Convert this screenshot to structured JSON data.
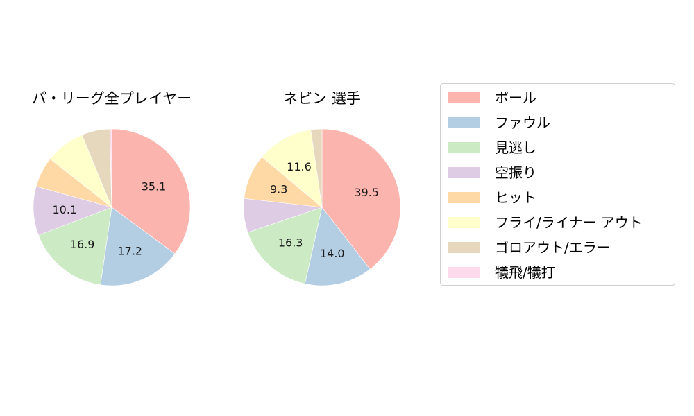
{
  "legend": {
    "items": [
      {
        "label": "ボール",
        "color": "#fbb4ae"
      },
      {
        "label": "ファウル",
        "color": "#b3cde3"
      },
      {
        "label": "見逃し",
        "color": "#ccebc5"
      },
      {
        "label": "空振り",
        "color": "#decbe4"
      },
      {
        "label": "ヒット",
        "color": "#fed9a6"
      },
      {
        "label": "フライ/ライナー アウト",
        "color": "#ffffcc"
      },
      {
        "label": "ゴロアウト/エラー",
        "color": "#e5d8bd"
      },
      {
        "label": "犠飛/犠打",
        "color": "#fddaec"
      }
    ]
  },
  "chart_data": [
    {
      "type": "pie",
      "title": "パ・リーグ全プレイヤー",
      "categories": [
        "ボール",
        "ファウル",
        "見逃し",
        "空振り",
        "ヒット",
        "フライ/ライナー アウト",
        "ゴロアウト/エラー",
        "犠飛/犠打"
      ],
      "values": [
        35.1,
        17.2,
        16.9,
        10.1,
        6.3,
        8.2,
        5.8,
        0.4
      ],
      "labels_shown": [
        "35.1",
        "17.2",
        "16.9",
        "10.1",
        "",
        "",
        "",
        ""
      ],
      "start_angle": 90,
      "direction": "clockwise",
      "center": [
        161,
        299
      ],
      "radius": 113
    },
    {
      "type": "pie",
      "title": "ネビン  選手",
      "categories": [
        "ボール",
        "ファウル",
        "見逃し",
        "空振り",
        "ヒット",
        "フライ/ライナー アウト",
        "ゴロアウト/エラー",
        "犠飛/犠打"
      ],
      "values": [
        39.5,
        14.0,
        16.3,
        7.0,
        9.3,
        11.6,
        2.3,
        0.0
      ],
      "labels_shown": [
        "39.5",
        "14.0",
        "16.3",
        "",
        "9.3",
        "11.6",
        "",
        ""
      ],
      "start_angle": 90,
      "direction": "clockwise",
      "center": [
        464,
        299
      ],
      "radius": 113
    }
  ]
}
